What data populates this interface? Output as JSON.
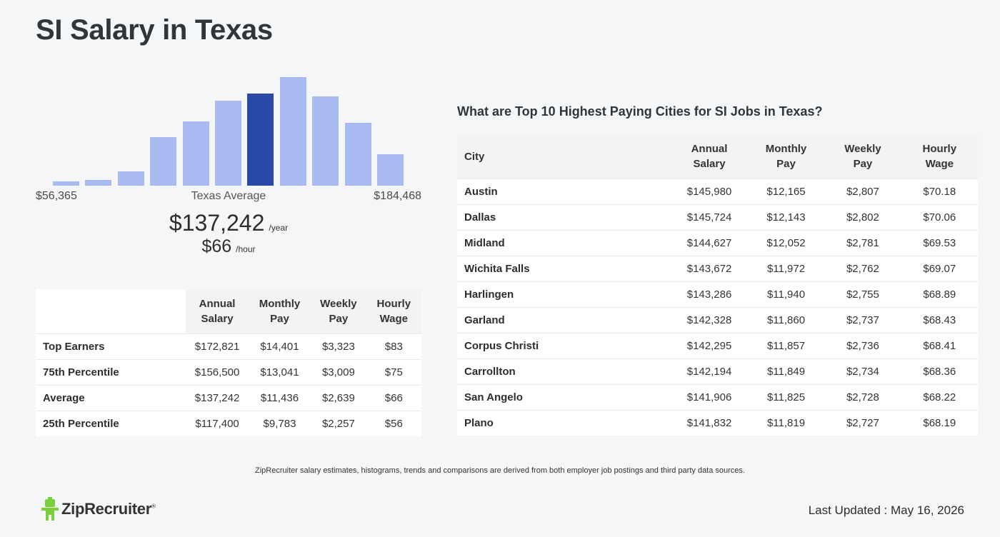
{
  "page": {
    "title": "SI Salary in Texas"
  },
  "histogram": {
    "values": [
      0.04,
      0.05,
      0.13,
      0.45,
      0.59,
      0.78,
      0.85,
      1.0,
      0.82,
      0.58,
      0.29
    ],
    "highlight_index": 6,
    "bar_color": "#a9b9f2",
    "highlight_color": "#2949a6",
    "min_label": "$56,365",
    "mid_label": "Texas Average",
    "max_label": "$184,468"
  },
  "average": {
    "annual": "$137,242",
    "annual_unit": "/year",
    "hourly": "$66",
    "hourly_unit": "/hour"
  },
  "percentile_table": {
    "headers": [
      "Annual Salary",
      "Monthly Pay",
      "Weekly Pay",
      "Hourly Wage"
    ],
    "rows": [
      {
        "label": "Top Earners",
        "annual": "$172,821",
        "monthly": "$14,401",
        "weekly": "$3,323",
        "hourly": "$83"
      },
      {
        "label": "75th Percentile",
        "annual": "$156,500",
        "monthly": "$13,041",
        "weekly": "$3,009",
        "hourly": "$75"
      },
      {
        "label": "Average",
        "annual": "$137,242",
        "monthly": "$11,436",
        "weekly": "$2,639",
        "hourly": "$66"
      },
      {
        "label": "25th Percentile",
        "annual": "$117,400",
        "monthly": "$9,783",
        "weekly": "$2,257",
        "hourly": "$56"
      }
    ]
  },
  "cities": {
    "heading": "What are Top 10 Highest Paying Cities for SI Jobs in Texas?",
    "headers": [
      "City",
      "Annual Salary",
      "Monthly Pay",
      "Weekly Pay",
      "Hourly Wage"
    ],
    "rows": [
      {
        "city": "Austin",
        "annual": "$145,980",
        "monthly": "$12,165",
        "weekly": "$2,807",
        "hourly": "$70.18"
      },
      {
        "city": "Dallas",
        "annual": "$145,724",
        "monthly": "$12,143",
        "weekly": "$2,802",
        "hourly": "$70.06"
      },
      {
        "city": "Midland",
        "annual": "$144,627",
        "monthly": "$12,052",
        "weekly": "$2,781",
        "hourly": "$69.53"
      },
      {
        "city": "Wichita Falls",
        "annual": "$143,672",
        "monthly": "$11,972",
        "weekly": "$2,762",
        "hourly": "$69.07"
      },
      {
        "city": "Harlingen",
        "annual": "$143,286",
        "monthly": "$11,940",
        "weekly": "$2,755",
        "hourly": "$68.89"
      },
      {
        "city": "Garland",
        "annual": "$142,328",
        "monthly": "$11,860",
        "weekly": "$2,737",
        "hourly": "$68.43"
      },
      {
        "city": "Corpus Christi",
        "annual": "$142,295",
        "monthly": "$11,857",
        "weekly": "$2,736",
        "hourly": "$68.41"
      },
      {
        "city": "Carrollton",
        "annual": "$142,194",
        "monthly": "$11,849",
        "weekly": "$2,734",
        "hourly": "$68.36"
      },
      {
        "city": "San Angelo",
        "annual": "$141,906",
        "monthly": "$11,825",
        "weekly": "$2,728",
        "hourly": "$68.22"
      },
      {
        "city": "Plano",
        "annual": "$141,832",
        "monthly": "$11,819",
        "weekly": "$2,727",
        "hourly": "$68.19"
      }
    ]
  },
  "footer": {
    "disclaimer": "ZipRecruiter salary estimates, histograms, trends and comparisons are derived from both employer job postings and third party data sources.",
    "logo_text": "ZipRecruiter",
    "logo_mark": "®",
    "logo_icon": "ziprecruiter-mascot-icon",
    "logo_color": "#7ad03a",
    "last_updated": "Last Updated : May 16, 2026"
  }
}
